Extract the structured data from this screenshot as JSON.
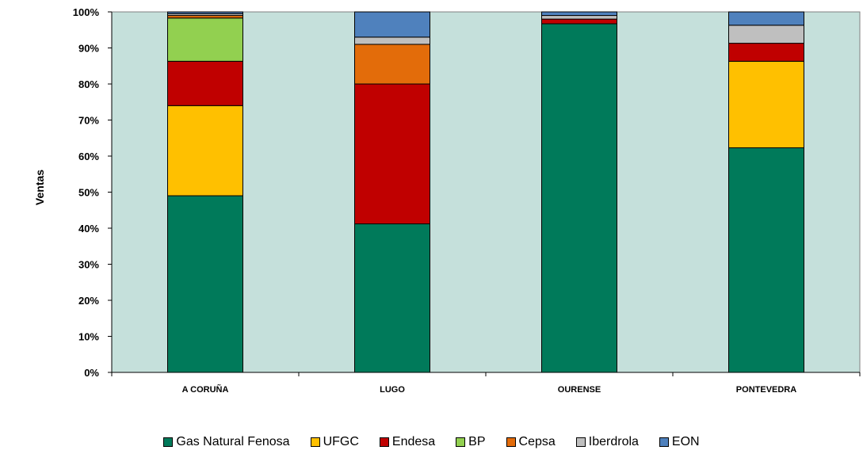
{
  "chart_data": {
    "type": "bar",
    "stacked": true,
    "percent": true,
    "categories": [
      "A CORUÑA",
      "LUGO",
      "OURENSE",
      "PONTEVEDRA"
    ],
    "series": [
      {
        "name": "Gas Natural Fenosa",
        "color": "#007A5A",
        "values": [
          49,
          41.2,
          96.7,
          62.3
        ]
      },
      {
        "name": "UFGC",
        "color": "#FFC000",
        "values": [
          25,
          0,
          0,
          24
        ]
      },
      {
        "name": "Endesa",
        "color": "#C00000",
        "values": [
          12.3,
          38.8,
          1.3,
          5
        ]
      },
      {
        "name": "BP",
        "color": "#92D050",
        "values": [
          12,
          0,
          0,
          0
        ]
      },
      {
        "name": "Cepsa",
        "color": "#E36C0A",
        "values": [
          0.7,
          11,
          0,
          0
        ]
      },
      {
        "name": "Iberdrola",
        "color": "#BFBFBF",
        "values": [
          0.5,
          2,
          1,
          5
        ]
      },
      {
        "name": "EON",
        "color": "#4F81BD",
        "values": [
          0.5,
          7,
          1,
          3.7
        ]
      }
    ],
    "ylabel": "Ventas",
    "xlabel": "",
    "ylim": [
      0,
      100
    ],
    "yticks": [
      "0%",
      "10%",
      "20%",
      "30%",
      "40%",
      "50%",
      "60%",
      "70%",
      "80%",
      "90%",
      "100%"
    ],
    "plot_background": "#C5E0DB",
    "legend_position": "bottom"
  }
}
